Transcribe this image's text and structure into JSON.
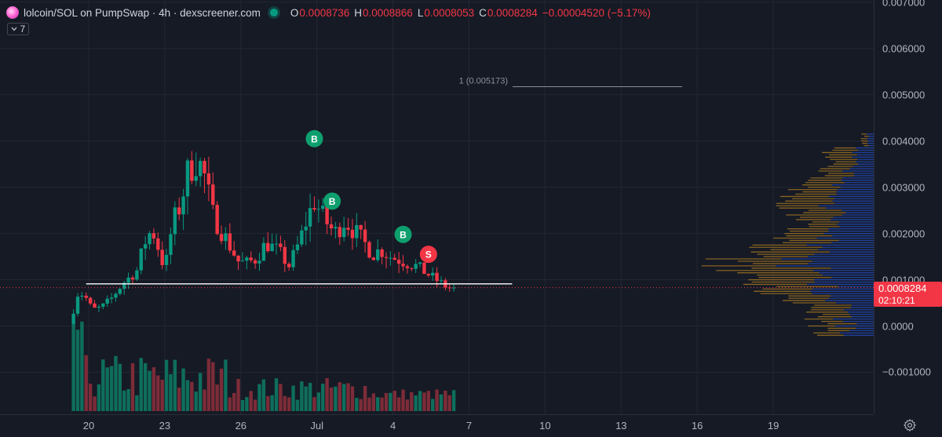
{
  "legend": {
    "symbol": "lolcoin/SOL on PumpSwap · 4h · dexscreener.com",
    "o_key": "O",
    "o_val": "0.0008736",
    "h_key": "H",
    "h_val": "0.0008866",
    "l_key": "L",
    "l_val": "0.0008053",
    "c_key": "C",
    "c_val": "0.0008284",
    "change": "−0.00004520 (−5.17%)",
    "indicator_count": "7"
  },
  "price_axis": {
    "current_price": "0.0008284",
    "countdown": "02:10:21"
  },
  "colors": {
    "background": "#161a25",
    "up": "#089981",
    "down": "#f23645",
    "volume_up": "#0e6e5c",
    "volume_down": "#7c2c38",
    "vp_up": "#2962ff",
    "vp_down": "#b7821f"
  },
  "icons": {
    "logo": "lolcoin-logo",
    "live": "live-dot-icon",
    "toggle": "chevron-down-icon",
    "settings": "gear-icon"
  },
  "chart_data": {
    "type": "candlestick",
    "pair": "lolcoin/SOL",
    "interval": "4h",
    "y_ticks": [
      "0.007000",
      "0.006000",
      "0.005000",
      "0.004000",
      "0.003000",
      "0.002000",
      "0.001000",
      "0.0000",
      "−0.001000"
    ],
    "x_ticks": [
      "20",
      "23",
      "26",
      "Jul",
      "4",
      "7",
      "10",
      "13",
      "16",
      "19"
    ],
    "ylim": [
      -0.00185,
      0.00702
    ],
    "grid": true,
    "fib_level": {
      "label": "1 (0.005173)",
      "value": 0.005173
    },
    "support_line": 0.00091,
    "current_price": 0.0008284,
    "markers": [
      {
        "type": "B",
        "day": 28.9,
        "price": 0.00405
      },
      {
        "type": "B",
        "day": 29.6,
        "price": 0.0027
      },
      {
        "type": "B",
        "day": 32.4,
        "price": 0.00198
      },
      {
        "type": "S",
        "day": 33.4,
        "price": 0.00155
      }
    ],
    "anchors": [
      [
        19.4,
        0.00035
      ],
      [
        19.6,
        0.00075
      ],
      [
        19.9,
        0.0006
      ],
      [
        20.15,
        0.00035
      ],
      [
        20.5,
        0.0004
      ],
      [
        20.9,
        0.0006
      ],
      [
        21.4,
        0.00095
      ],
      [
        21.9,
        0.0012
      ],
      [
        22.2,
        0.0018
      ],
      [
        22.5,
        0.0021
      ],
      [
        22.8,
        0.0016
      ],
      [
        23.0,
        0.0012
      ],
      [
        23.3,
        0.0022
      ],
      [
        23.6,
        0.0026
      ],
      [
        23.9,
        0.0033
      ],
      [
        24.2,
        0.0036
      ],
      [
        24.5,
        0.0034
      ],
      [
        24.9,
        0.0024
      ],
      [
        25.3,
        0.002
      ],
      [
        25.6,
        0.0017
      ],
      [
        25.9,
        0.0014
      ],
      [
        26.2,
        0.00135
      ],
      [
        26.6,
        0.00145
      ],
      [
        27.0,
        0.0018
      ],
      [
        27.5,
        0.0016
      ],
      [
        27.9,
        0.0013
      ],
      [
        28.3,
        0.0018
      ],
      [
        28.6,
        0.0023
      ],
      [
        28.9,
        0.0027
      ],
      [
        29.3,
        0.0023
      ],
      [
        29.7,
        0.002
      ],
      [
        30.1,
        0.0023
      ],
      [
        30.4,
        0.0021
      ],
      [
        30.8,
        0.00185
      ],
      [
        31.2,
        0.00155
      ],
      [
        31.5,
        0.00165
      ],
      [
        31.9,
        0.0015
      ],
      [
        32.4,
        0.0014
      ],
      [
        32.9,
        0.0013
      ],
      [
        33.3,
        0.00115
      ],
      [
        33.7,
        0.001
      ],
      [
        34.1,
        0.00085
      ],
      [
        34.4,
        0.000828
      ]
    ]
  }
}
